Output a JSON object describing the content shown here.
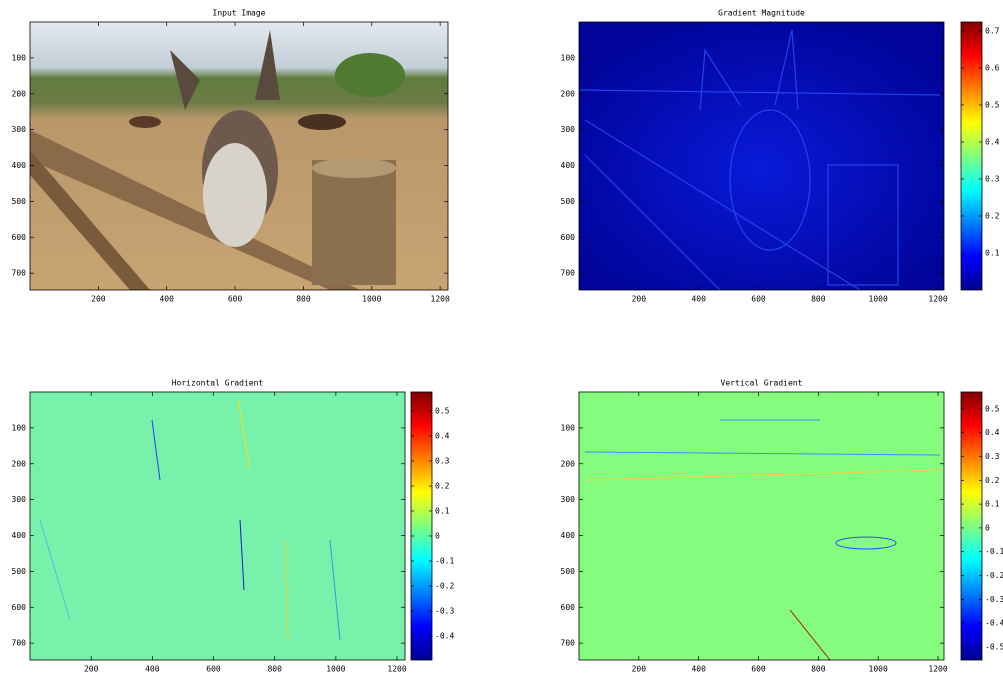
{
  "chart_data": [
    {
      "type": "image",
      "title": "Input Image",
      "xlim": [
        0,
        1223
      ],
      "ylim": [
        0,
        747
      ],
      "yreverse": true,
      "xticks": [
        200,
        400,
        600,
        800,
        1000,
        1200
      ],
      "yticks": [
        100,
        200,
        300,
        400,
        500,
        600,
        700
      ]
    },
    {
      "type": "image",
      "title": "Gradient Magnitude",
      "xlim": [
        0,
        1220
      ],
      "ylim": [
        0,
        747
      ],
      "yreverse": true,
      "xticks": [
        200,
        400,
        600,
        800,
        1000,
        1200
      ],
      "yticks": [
        100,
        200,
        300,
        400,
        500,
        600,
        700
      ],
      "colormap": "jet",
      "clim": [
        0,
        0.724
      ],
      "cticks": [
        0.1,
        0.2,
        0.3,
        0.4,
        0.5,
        0.6,
        0.7
      ]
    },
    {
      "type": "image",
      "title": "Horizontal Gradient",
      "xlim": [
        0,
        1226
      ],
      "ylim": [
        0,
        747
      ],
      "yreverse": true,
      "xticks": [
        200,
        400,
        600,
        800,
        1000,
        1200
      ],
      "yticks": [
        100,
        200,
        300,
        400,
        500,
        600,
        700
      ],
      "colormap": "jet",
      "clim": [
        -0.496,
        0.576
      ],
      "cticks": [
        -0.4,
        -0.3,
        -0.2,
        -0.1,
        0,
        0.1,
        0.2,
        0.3,
        0.4,
        0.5
      ]
    },
    {
      "type": "image",
      "title": "Vertical Gradient",
      "xlim": [
        0,
        1220
      ],
      "ylim": [
        0,
        747
      ],
      "yreverse": true,
      "xticks": [
        200,
        400,
        600,
        800,
        1000,
        1200
      ],
      "yticks": [
        100,
        200,
        300,
        400,
        500,
        600,
        700
      ],
      "colormap": "jet",
      "clim": [
        -0.555,
        0.571
      ],
      "cticks": [
        -0.5,
        -0.4,
        -0.3,
        -0.2,
        -0.1,
        0,
        0.1,
        0.2,
        0.3,
        0.4,
        0.5
      ]
    }
  ]
}
